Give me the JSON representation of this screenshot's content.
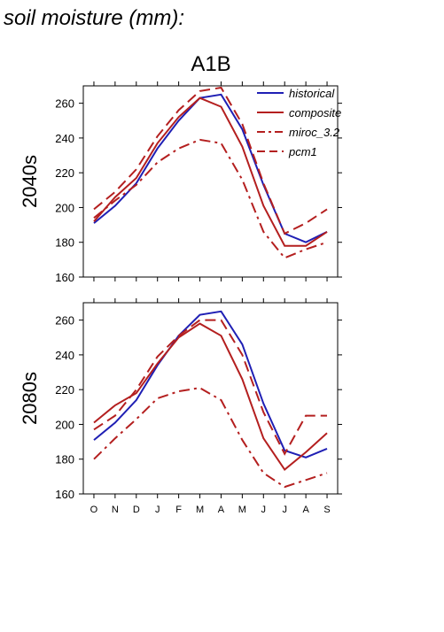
{
  "title": "soil moisture (mm):",
  "colors": {
    "historical": "#1f1fb4",
    "scenario": "#b41f1f",
    "axis": "#000000"
  },
  "chart_data": {
    "type": "line",
    "scenario": "A1B",
    "x": [
      "O",
      "N",
      "D",
      "J",
      "F",
      "M",
      "A",
      "M",
      "J",
      "J",
      "A",
      "S"
    ],
    "ylim": [
      160,
      270
    ],
    "yticks": [
      160,
      180,
      200,
      220,
      240,
      260
    ],
    "legend": {
      "placement": "top-right",
      "entries": [
        {
          "name": "historical",
          "color": "#1f1fb4",
          "style": "solid"
        },
        {
          "name": "composite",
          "color": "#b41f1f",
          "style": "solid"
        },
        {
          "name": "miroc_3.2",
          "color": "#b41f1f",
          "style": "dashdot"
        },
        {
          "name": "pcm1",
          "color": "#b41f1f",
          "style": "dashed"
        }
      ]
    },
    "panels": [
      {
        "label": "2040s",
        "series": [
          {
            "name": "historical",
            "values": [
              191,
              201,
              214,
              234,
              250,
              263,
              265,
              245,
              213,
              185,
              180,
              186
            ]
          },
          {
            "name": "composite",
            "values": [
              192,
              206,
              217,
              237,
              252,
              263,
              258,
              235,
              201,
              178,
              178,
              186
            ]
          },
          {
            "name": "miroc_3.2",
            "values": [
              194,
              204,
              213,
              226,
              234,
              239,
              237,
              216,
              186,
              171,
              176,
              180
            ]
          },
          {
            "name": "pcm1",
            "values": [
              199,
              209,
              222,
              241,
              256,
              267,
              269,
              248,
              214,
              185,
              191,
              199
            ]
          }
        ]
      },
      {
        "label": "2080s",
        "series": [
          {
            "name": "historical",
            "values": [
              191,
              201,
              214,
              234,
              251,
              263,
              265,
              246,
              212,
              185,
              181,
              186
            ]
          },
          {
            "name": "composite",
            "values": [
              201,
              211,
              218,
              235,
              250,
              258,
              251,
              226,
              192,
              174,
              184,
              195
            ]
          },
          {
            "name": "miroc_3.2",
            "values": [
              180,
              192,
              203,
              215,
              219,
              221,
              214,
              191,
              172,
              164,
              168,
              172
            ]
          },
          {
            "name": "pcm1",
            "values": [
              197,
              205,
              220,
              239,
              251,
              260,
              260,
              240,
              207,
              183,
              205,
              205
            ]
          }
        ]
      }
    ]
  }
}
